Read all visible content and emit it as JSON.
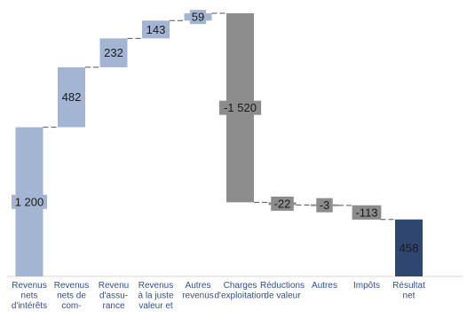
{
  "chart_data": {
    "type": "bar",
    "subtype": "waterfall",
    "categories": [
      [
        "Revenus",
        "nets",
        "d'intérêts"
      ],
      [
        "Revenus",
        "nets de",
        "com-"
      ],
      [
        "Revenu",
        "d'assu-",
        "rance"
      ],
      [
        "Revenus",
        "à la juste",
        "valeur et"
      ],
      [
        "Autres",
        "revenus"
      ],
      [
        "Charges",
        "d'exploitation"
      ],
      [
        "Réductions",
        "de valeur"
      ],
      [
        "Autres"
      ],
      [
        "Impôts"
      ],
      [
        "Résultat",
        "net"
      ]
    ],
    "values": [
      1200,
      482,
      232,
      143,
      59,
      -1520,
      -22,
      -3,
      -113,
      458
    ],
    "value_labels": [
      "1 200",
      "482",
      "232",
      "143",
      "59",
      "-1 520",
      "-22",
      "-3",
      "-113",
      "458"
    ],
    "kind": [
      "increase",
      "increase",
      "increase",
      "increase",
      "increase",
      "decrease",
      "decrease",
      "decrease",
      "decrease",
      "total"
    ],
    "colors": {
      "increase": "#a3b5d3",
      "decrease": "#8c8c8c",
      "total": "#2e4670",
      "connector": "#44546a",
      "label_box": "#bfbfbf",
      "category_text": "#2f4f8f"
    },
    "grid": false,
    "legend": "none"
  }
}
